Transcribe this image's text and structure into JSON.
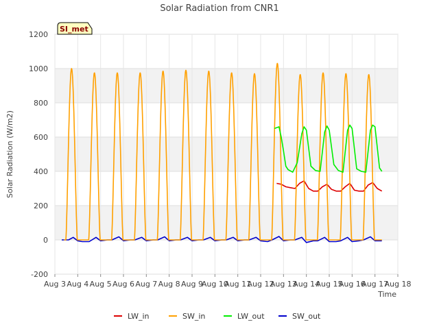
{
  "chart_data": {
    "type": "line",
    "title": "Solar Radiation from CNR1",
    "xlabel": "Time",
    "ylabel": "Solar Radiation (W/m2)",
    "badge": "SI_met",
    "xlim": [
      3,
      18
    ],
    "ylim": [
      -200,
      1200
    ],
    "x_ticks": [
      3,
      4,
      5,
      6,
      7,
      8,
      9,
      10,
      11,
      12,
      13,
      14,
      15,
      16,
      17,
      18
    ],
    "x_tick_labels": [
      "Aug 3",
      "Aug 4",
      "Aug 5",
      "Aug 6",
      "Aug 7",
      "Aug 8",
      "Aug 9",
      "Aug 10",
      "Aug 11",
      "Aug 12",
      "Aug 13",
      "Aug 14",
      "Aug 15",
      "Aug 16",
      "Aug 17",
      "Aug 18"
    ],
    "y_ticks": [
      -200,
      0,
      200,
      400,
      600,
      800,
      1000,
      1200
    ],
    "legend_position": "bottom-center",
    "series": [
      {
        "name": "LW_in",
        "color": "#dd0000",
        "x": [
          12.7,
          12.9,
          13.1,
          13.3,
          13.5,
          13.7,
          13.9,
          14.1,
          14.3,
          14.5,
          14.7,
          14.9,
          15.1,
          15.3,
          15.5,
          15.7,
          15.9,
          16.1,
          16.3,
          16.5,
          16.7,
          16.9,
          17.1,
          17.3
        ],
        "y": [
          330,
          325,
          310,
          305,
          300,
          330,
          345,
          300,
          285,
          285,
          310,
          325,
          295,
          285,
          285,
          310,
          330,
          290,
          285,
          285,
          320,
          335,
          300,
          285
        ]
      },
      {
        "name": "SW_in",
        "peaks": [
          {
            "x": 3.8,
            "y": 1000
          },
          {
            "x": 4.8,
            "y": 975
          },
          {
            "x": 5.8,
            "y": 975
          },
          {
            "x": 6.8,
            "y": 975
          },
          {
            "x": 7.8,
            "y": 985
          },
          {
            "x": 8.8,
            "y": 990
          },
          {
            "x": 9.8,
            "y": 985
          },
          {
            "x": 10.8,
            "y": 975
          },
          {
            "x": 11.8,
            "y": 970
          },
          {
            "x": 12.8,
            "y": 1030
          },
          {
            "x": 13.8,
            "y": 965
          },
          {
            "x": 14.8,
            "y": 975
          },
          {
            "x": 15.8,
            "y": 970
          },
          {
            "x": 16.8,
            "y": 965
          }
        ],
        "day_start": 0.48,
        "day_end": 0.98,
        "x_range": [
          3.4,
          17.3
        ],
        "color": "#ffa000"
      },
      {
        "name": "LW_out",
        "color": "#00ee00",
        "x": [
          12.6,
          12.8,
          12.9,
          13.0,
          13.1,
          13.2,
          13.4,
          13.6,
          13.8,
          13.9,
          14.0,
          14.2,
          14.4,
          14.6,
          14.8,
          14.9,
          15.0,
          15.2,
          15.4,
          15.6,
          15.8,
          15.9,
          16.0,
          16.2,
          16.4,
          16.6,
          16.8,
          16.9,
          17.0,
          17.2,
          17.3
        ],
        "y": [
          650,
          660,
          600,
          520,
          430,
          410,
          395,
          450,
          620,
          660,
          640,
          430,
          405,
          400,
          630,
          665,
          640,
          440,
          405,
          395,
          640,
          670,
          650,
          415,
          400,
          395,
          640,
          670,
          660,
          420,
          400
        ]
      },
      {
        "name": "SW_out",
        "color": "#0000cc",
        "x": [
          3.3,
          3.6,
          3.8,
          4.0,
          4.2,
          4.5,
          4.8,
          5.0,
          5.3,
          5.5,
          5.8,
          6.0,
          6.3,
          6.5,
          6.8,
          7.0,
          7.3,
          7.5,
          7.8,
          8.0,
          8.3,
          8.5,
          8.8,
          9.0,
          9.3,
          9.5,
          9.8,
          10.0,
          10.3,
          10.5,
          10.8,
          11.0,
          11.3,
          11.5,
          11.8,
          12.0,
          12.3,
          12.5,
          12.8,
          13.0,
          13.3,
          13.5,
          13.8,
          14.0,
          14.3,
          14.5,
          14.8,
          15.0,
          15.3,
          15.5,
          15.8,
          16.0,
          16.3,
          16.5,
          16.8,
          17.0,
          17.3
        ],
        "y": [
          0,
          0,
          15,
          -5,
          -10,
          -10,
          15,
          -5,
          0,
          0,
          18,
          -5,
          0,
          0,
          15,
          -5,
          0,
          0,
          18,
          -5,
          0,
          0,
          15,
          -5,
          0,
          0,
          15,
          -5,
          0,
          0,
          15,
          -5,
          0,
          0,
          15,
          -5,
          -10,
          0,
          20,
          -5,
          0,
          0,
          15,
          -15,
          -5,
          -5,
          15,
          -10,
          -10,
          -5,
          15,
          -10,
          -5,
          0,
          18,
          -5,
          -5
        ]
      }
    ]
  }
}
